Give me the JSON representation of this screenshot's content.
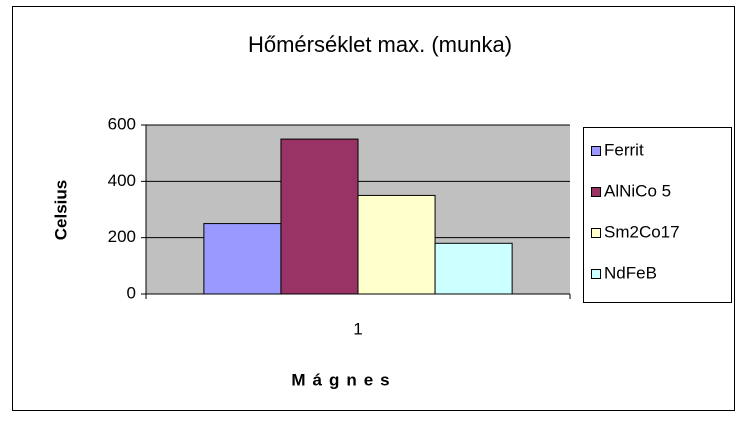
{
  "chart_data": {
    "type": "bar",
    "title": "Hőmérséklet max. (munka)",
    "x_label": "Mágnes",
    "y_label": "Celsius",
    "categories": [
      "1"
    ],
    "series": [
      {
        "name": "Ferrit",
        "color": "#9999ff",
        "values": [
          250
        ]
      },
      {
        "name": "AlNiCo 5",
        "color": "#993366",
        "values": [
          550
        ]
      },
      {
        "name": "Sm2Co17",
        "color": "#ffffcc",
        "values": [
          350
        ]
      },
      {
        "name": "NdFeB",
        "color": "#ccffff",
        "values": [
          180
        ]
      }
    ],
    "ylim": [
      0,
      600
    ],
    "yticks": [
      0,
      200,
      400,
      600
    ],
    "grid": true,
    "legend": "right"
  }
}
